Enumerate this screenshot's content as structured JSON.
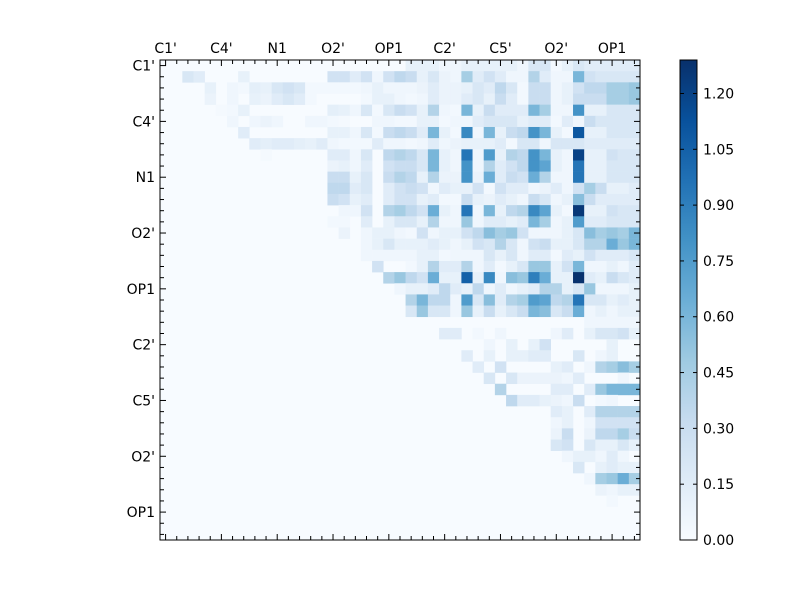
{
  "chart_data": {
    "type": "heatmap",
    "title": "",
    "xlabel": "",
    "ylabel": "",
    "size": 43,
    "x_tick_labels": [
      "C1'",
      "C4'",
      "N1",
      "O2'",
      "OP1",
      "C2'",
      "C5'",
      "O2'",
      "OP1"
    ],
    "y_tick_labels": [
      "C1'",
      "C4'",
      "N1",
      "O2'",
      "OP1",
      "C2'",
      "C5'",
      "O2'",
      "OP1"
    ],
    "tick_label_every": 5,
    "colormap": "Blues",
    "colormap_stops": [
      "#f7fbff",
      "#deebf7",
      "#c6dbef",
      "#9ecae1",
      "#6baed6",
      "#4292c6",
      "#2171b5",
      "#08519c",
      "#08306b"
    ],
    "vmin": 0,
    "vmax": 1.29,
    "colorbar_ticks": [
      "0.00",
      "0.15",
      "0.30",
      "0.45",
      "0.60",
      "0.75",
      "0.90",
      "1.05",
      "1.20"
    ],
    "grid": false,
    "legend": "colorbar-right",
    "rows_sparse": [
      [
        22,
        [
          0.1,
          0.1,
          0.1,
          0.05,
          0.05,
          0.1,
          0.1,
          0.1,
          0.1,
          0.1,
          0.05,
          0.2,
          0.2,
          0.03,
          0.1,
          0.2,
          0.15,
          0.15,
          0.15,
          0.15,
          0.15
        ]
      ],
      [
        2,
        [
          0.2,
          0.15,
          0,
          0,
          0,
          0.1,
          0,
          0,
          0,
          0,
          0,
          0,
          0,
          0.25,
          0.25,
          0.15,
          0.25,
          0.05,
          0.25,
          0.35,
          0.3,
          0.1,
          0.2,
          0.08,
          0.05,
          0.45,
          0.15,
          0.25,
          0.15,
          0.05,
          0.05,
          0.4,
          0.15,
          0.05,
          0.05,
          0.6,
          0.25,
          0.2,
          0.2,
          0.2,
          0.2
        ]
      ],
      [
        4,
        [
          0.1,
          0,
          0.05,
          0.03,
          0.12,
          0.1,
          0.2,
          0.25,
          0.2,
          0.03,
          0.03,
          0.03,
          0.03,
          0.03,
          0.05,
          0.1,
          0.05,
          0.05,
          0.05,
          0.08,
          0.15,
          0.08,
          0.08,
          0.1,
          0.2,
          0.15,
          0.35,
          0.2,
          0.03,
          0.3,
          0.3,
          0.05,
          0.1,
          0.25,
          0.35,
          0.35,
          0.45,
          0.45,
          0.5
        ]
      ],
      [
        4,
        [
          0.08,
          0,
          0.05,
          0,
          0.1,
          0.08,
          0.15,
          0.2,
          0.15,
          0.03,
          0,
          0,
          0,
          0,
          0.03,
          0.1,
          0.1,
          0.05,
          0.03,
          0.05,
          0.15,
          0.08,
          0.08,
          0.15,
          0.2,
          0.1,
          0.3,
          0.15,
          0.03,
          0.3,
          0.3,
          0.05,
          0.1,
          0.3,
          0.3,
          0.3,
          0.45,
          0.45,
          0.5
        ]
      ],
      [
        5,
        [
          0.02,
          0.03,
          0.1,
          0,
          0,
          0,
          0,
          0,
          0,
          0,
          0.12,
          0.1,
          0.05,
          0.2,
          0.03,
          0.2,
          0.3,
          0.25,
          0.1,
          0.4,
          0.05,
          0.03,
          0.6,
          0.1,
          0.3,
          0.15,
          0.15,
          0.15,
          0.6,
          0.45,
          0.05,
          0.05,
          0.8,
          0.1,
          0.1,
          0.2,
          0.2,
          0.2
        ]
      ],
      [
        6,
        [
          0.05,
          0,
          0.05,
          0.08,
          0.05,
          0,
          0,
          0.05,
          0.05,
          0.03,
          0.02,
          0,
          0,
          0.05,
          0.05,
          0.03,
          0.03,
          0.1,
          0.1,
          0.03,
          0.05,
          0.05,
          0.15,
          0.2,
          0.2,
          0.2,
          0.1,
          0.15,
          0.15,
          0.03,
          0.15,
          0.05,
          0.3,
          0.2,
          0.2,
          0.2,
          0.2
        ]
      ],
      [
        7,
        [
          0.15,
          0,
          0,
          0,
          0,
          0,
          0,
          0,
          0.1,
          0.1,
          0.05,
          0.2,
          0.03,
          0.3,
          0.35,
          0.3,
          0.15,
          0.6,
          0.1,
          0.03,
          0.85,
          0.05,
          0.6,
          0.1,
          0.3,
          0.35,
          0.8,
          0.6,
          0.1,
          0.03,
          1.1,
          0.1,
          0.1,
          0.2,
          0.2,
          0.2
        ]
      ],
      [
        8,
        [
          0.15,
          0.12,
          0.15,
          0.15,
          0.12,
          0.1,
          0.15,
          0.05,
          0.03,
          0.03,
          0.03,
          0.15,
          0.05,
          0.05,
          0.03,
          0.05,
          0.15,
          0.05,
          0.08,
          0.1,
          0.1,
          0.1,
          0.15,
          0.03,
          0.2,
          0.2,
          0.05,
          0.2,
          0.2,
          0.2,
          0.15,
          0.15,
          0.15,
          0.15,
          0.15
        ]
      ],
      [
        9,
        [
          0.02,
          0,
          0,
          0,
          0,
          0,
          0.15,
          0.15,
          0.05,
          0.2,
          0,
          0.35,
          0.4,
          0.35,
          0.2,
          0.6,
          0.1,
          0.05,
          0.95,
          0.05,
          0.75,
          0.1,
          0.4,
          0.35,
          0.8,
          0.6,
          0.1,
          0.05,
          1.2,
          0.1,
          0.1,
          0.25,
          0.2,
          0.2
        ]
      ],
      [
        15,
        [
          0.08,
          0.1,
          0.05,
          0.15,
          0,
          0.25,
          0.3,
          0.3,
          0.2,
          0.6,
          0.1,
          0.05,
          0.8,
          0.05,
          0.4,
          0.15,
          0.25,
          0.35,
          0.8,
          0.7,
          0.1,
          0.05,
          0.95,
          0.1,
          0.1,
          0.2,
          0.2,
          0.2
        ]
      ],
      [
        15,
        [
          0.3,
          0.3,
          0.1,
          0.2,
          0,
          0.3,
          0.4,
          0.35,
          0.1,
          0.4,
          0.08,
          0.08,
          0.8,
          0.08,
          0.65,
          0.15,
          0.3,
          0.25,
          0.65,
          0.4,
          0.05,
          0.05,
          0.95,
          0.1,
          0.1,
          0.2,
          0.2,
          0.2
        ]
      ],
      [
        15,
        [
          0.35,
          0.35,
          0.15,
          0.2,
          0,
          0.15,
          0.25,
          0.3,
          0.25,
          0.05,
          0.15,
          0.1,
          0.1,
          0.25,
          0.03,
          0.25,
          0.15,
          0.15,
          0.05,
          0.08,
          0.15,
          0.05,
          0.25,
          0.45,
          0.3,
          0.1,
          0.1,
          0.15
        ]
      ],
      [
        15,
        [
          0.3,
          0.25,
          0.1,
          0.15,
          0,
          0.15,
          0.25,
          0.25,
          0.1,
          0.15,
          0.03,
          0.03,
          0.3,
          0.1,
          0.08,
          0.15,
          0.1,
          0.05,
          0.3,
          0.2,
          0.05,
          0.1,
          0.55,
          0.3,
          0.15,
          0.15,
          0.15,
          0.15
        ]
      ],
      [
        16,
        [
          0.05,
          0.05,
          0.25,
          0,
          0.4,
          0.45,
          0.35,
          0.25,
          0.65,
          0.1,
          0.05,
          0.95,
          0.05,
          0.6,
          0.1,
          0.35,
          0.4,
          0.85,
          0.7,
          0.1,
          0.03,
          1.25,
          0.1,
          0.1,
          0.25,
          0.2,
          0.2
        ]
      ],
      [
        15,
        [
          0.03,
          0.03,
          0,
          0.15,
          0,
          0.1,
          0.2,
          0.2,
          0.1,
          0.4,
          0.05,
          0.05,
          0.5,
          0.05,
          0.15,
          0.15,
          0.1,
          0.15,
          0.6,
          0.45,
          0.05,
          0.1,
          0.75,
          0.15,
          0.15,
          0.2,
          0.2,
          0.2
        ]
      ],
      [
        16,
        [
          0.08,
          0,
          0.05,
          0.1,
          0.1,
          0.05,
          0.03,
          0.25,
          0.05,
          0.1,
          0.1,
          0.25,
          0.35,
          0.55,
          0.45,
          0.5,
          0.25,
          0.05,
          0.05,
          0.05,
          0.1,
          0.2,
          0.55,
          0.45,
          0.5,
          0.45,
          0.6
        ]
      ],
      [
        18,
        [
          0.05,
          0.1,
          0.2,
          0.1,
          0.1,
          0.1,
          0.15,
          0.1,
          0.05,
          0.1,
          0.25,
          0.2,
          0.4,
          0.2,
          0.05,
          0.25,
          0.3,
          0.1,
          0.1,
          0.2,
          0.4,
          0.4,
          0.65,
          0.5,
          0.6
        ]
      ],
      [
        18,
        [
          0.05,
          0.05,
          0.05,
          0.05,
          0.05,
          0.1,
          0.1,
          0.03,
          0.05,
          0.05,
          0.05,
          0.2,
          0.1,
          0.2,
          0.05,
          0.15,
          0.15,
          0.03,
          0.15,
          0.1,
          0.25,
          0.15,
          0.15,
          0.15,
          0.2
        ]
      ],
      [
        19,
        [
          0.25,
          0,
          0,
          0.03,
          0.1,
          0.4,
          0.15,
          0.15,
          0.4,
          0.05,
          0.15,
          0.03,
          0.1,
          0.2,
          0.5,
          0.5,
          0.1,
          0.25,
          0.6,
          0.05,
          0.05,
          0.1,
          0.05,
          0.15
        ]
      ],
      [
        20,
        [
          0.4,
          0.5,
          0.35,
          0.25,
          0.65,
          0.1,
          0.1,
          1.05,
          0.1,
          0.85,
          0.05,
          0.55,
          0.5,
          0.9,
          0.65,
          0.1,
          0.1,
          1.28,
          0.15,
          0.1,
          0.3,
          0.2,
          0.15
        ]
      ],
      [
        21,
        [
          0.05,
          0.1,
          0.1,
          0.15,
          0.35,
          0.15,
          0.1,
          0.35,
          0.05,
          0.15,
          0.05,
          0.1,
          0.15,
          0.4,
          0.4,
          0.1,
          0.2,
          0.5,
          0.05,
          0.05,
          0.05,
          0.1
        ]
      ],
      [
        22,
        [
          0.4,
          0.6,
          0.35,
          0.35,
          0.05,
          0.75,
          0.2,
          0.55,
          0.15,
          0.4,
          0.45,
          0.75,
          0.7,
          0.35,
          0.4,
          0.95,
          0.2,
          0.2,
          0.1,
          0.15,
          0.1
        ]
      ],
      [
        22,
        [
          0.2,
          0.5,
          0.2,
          0.2,
          0.05,
          0.5,
          0.1,
          0.3,
          0.1,
          0.2,
          0.3,
          0.6,
          0.55,
          0.2,
          0.3,
          0.65,
          0.05,
          0.1,
          0.05,
          0.1,
          0.1
        ]
      ],
      [
        38,
        [
          0.05,
          0.05,
          0.05,
          0.05,
          0.05
        ]
      ],
      [
        25,
        [
          0.15,
          0.15,
          0,
          0.03,
          0,
          0.05,
          0,
          0,
          0,
          0,
          0.05,
          0.15,
          0,
          0.1,
          0.2,
          0.2,
          0.25,
          0.1
        ]
      ],
      [
        29,
        [
          0.05,
          0,
          0.1,
          0,
          0.1,
          0.25,
          0,
          0,
          0,
          0,
          0,
          0.1,
          0
        ]
      ],
      [
        27,
        [
          0.15,
          0,
          0.1,
          0,
          0.1,
          0.1,
          0.15,
          0.15,
          0,
          0,
          0.2,
          0,
          0.05,
          0.1
        ]
      ],
      [
        28,
        [
          0.15,
          0,
          0.25,
          0,
          0,
          0,
          0,
          0.1,
          0.15,
          0,
          0.05,
          0.4,
          0.45,
          0.55,
          0.45
        ]
      ],
      [
        29,
        [
          0.2,
          0,
          0.2,
          0.08,
          0.08,
          0.08,
          0.08,
          0.05,
          0.15,
          0,
          0,
          0,
          0.05
        ]
      ],
      [
        30,
        [
          0.4,
          0,
          0,
          0,
          0,
          0.15,
          0.15,
          0,
          0.15,
          0.5,
          0.6,
          0.6,
          0.6
        ]
      ],
      [
        31,
        [
          0.35,
          0.15,
          0.15,
          0.1,
          0.08,
          0.05,
          0.3,
          0,
          0.03,
          0.05
        ]
      ],
      [
        35,
        [
          0.15,
          0.1,
          0,
          0.15,
          0.4,
          0.4,
          0.4,
          0.4
        ]
      ],
      [
        35,
        [
          0.05,
          0.1,
          0,
          0.05,
          0.25,
          0.25,
          0.25,
          0.25
        ]
      ],
      [
        35,
        [
          0.08,
          0.3,
          0,
          0.08,
          0.35,
          0.35,
          0.45,
          0.3
        ]
      ],
      [
        35,
        [
          0.2,
          0.25,
          0,
          0.2,
          0.1,
          0.1,
          0.2,
          0.1
        ]
      ],
      [
        36,
        [
          0.05,
          0.1,
          0.1,
          0.05,
          0.15,
          0.05
        ]
      ],
      [
        37,
        [
          0.2,
          0,
          0.1,
          0.15,
          0.1,
          0.1
        ]
      ],
      [
        38,
        [
          0.05,
          0.45,
          0.5,
          0.65,
          0.45
        ]
      ],
      [
        39,
        [
          0.08,
          0.05,
          0.1,
          0.1
        ]
      ],
      [
        40,
        [
          0.03
        ]
      ],
      [
        0,
        []
      ],
      [
        0,
        []
      ],
      [
        0,
        []
      ]
    ]
  }
}
